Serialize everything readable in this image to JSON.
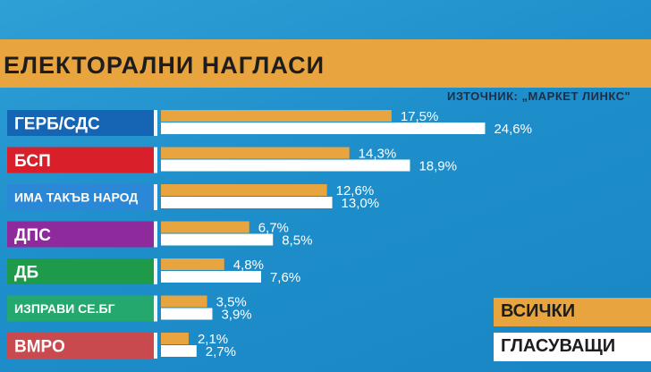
{
  "title": "ЕЛЕКТОРАЛНИ НАГЛАСИ",
  "source": "ИЗТОЧНИК: „МАРКЕТ ЛИНКС\"",
  "legend": {
    "all": "ВСИЧКИ",
    "voters": "ГЛАСУВАЩИ"
  },
  "colors": {
    "all": "#e8a43e",
    "voters": "#ffffff"
  },
  "chart_data": {
    "type": "bar",
    "orientation": "horizontal",
    "unit": "%",
    "xlim": [
      0,
      30
    ],
    "grid": false,
    "legend_position": "bottom-right",
    "categories": [
      "ГЕРБ/СДС",
      "БСП",
      "ИМА ТАКЪВ НАРОД",
      "ДПС",
      "ДБ",
      "ИЗПРАВИ СЕ.БГ",
      "ВМРО"
    ],
    "category_colors": [
      "#1565b4",
      "#d9202a",
      "#2b88d6",
      "#8e2a9c",
      "#1e9a4a",
      "#24a86e",
      "#c94a4e"
    ],
    "series": [
      {
        "name": "ВСИЧКИ",
        "values": [
          17.5,
          14.3,
          12.6,
          6.7,
          4.8,
          3.5,
          2.1
        ],
        "labels": [
          "17,5%",
          "14,3%",
          "12,6%",
          "6,7%",
          "4,8%",
          "3,5%",
          "2,1%"
        ]
      },
      {
        "name": "ГЛАСУВАЩИ",
        "values": [
          24.6,
          18.9,
          13.0,
          8.5,
          7.6,
          3.9,
          2.7
        ],
        "labels": [
          "24,6%",
          "18,9%",
          "13,0%",
          "8,5%",
          "7,6%",
          "3,9%",
          "2,7%"
        ]
      }
    ]
  }
}
